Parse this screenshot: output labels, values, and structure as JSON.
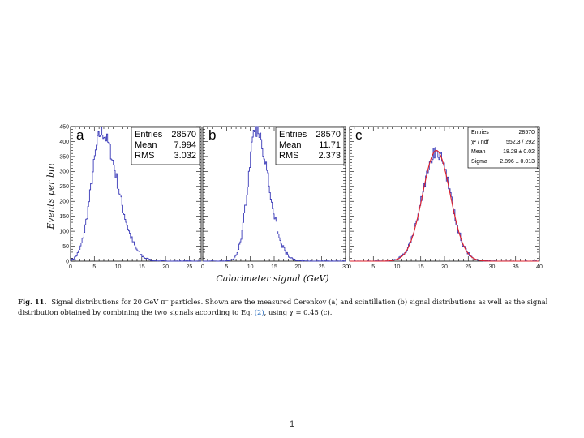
{
  "chart_data": [
    {
      "type": "histogram",
      "panel_label": "a",
      "ylabel": "Events per bin",
      "xlim": [
        0,
        27.5
      ],
      "ylim": [
        0,
        450
      ],
      "yticks": [
        0,
        50,
        100,
        150,
        200,
        250,
        300,
        350,
        400,
        450
      ],
      "xticks": [
        0,
        5,
        10,
        15,
        20,
        25
      ],
      "line_color": "#3a3ab8",
      "stats": [
        {
          "label": "Entries",
          "value": "28570"
        },
        {
          "label": "Mean",
          "value": "7.994"
        },
        {
          "label": "RMS",
          "value": "3.032"
        }
      ],
      "peak_x": 6.5,
      "peak_y": 430,
      "sigma_left": 2.1,
      "sigma_right": 3.4
    },
    {
      "type": "histogram",
      "panel_label": "b",
      "xlim": [
        0,
        30
      ],
      "ylim": [
        0,
        450
      ],
      "xticks": [
        0,
        5,
        10,
        15,
        20,
        25,
        30
      ],
      "line_color": "#3a3ab8",
      "stats": [
        {
          "label": "Entries",
          "value": "28570"
        },
        {
          "label": "Mean",
          "value": "11.71"
        },
        {
          "label": "RMS",
          "value": "2.373"
        }
      ],
      "peak_x": 11.2,
      "peak_y": 435,
      "sigma_left": 1.7,
      "sigma_right": 2.7
    },
    {
      "type": "histogram",
      "panel_label": "c",
      "xlim": [
        0,
        40
      ],
      "ylim": [
        0,
        450
      ],
      "xticks": [
        0,
        5,
        10,
        15,
        20,
        25,
        30,
        35,
        40
      ],
      "line_color": "#3a3ab8",
      "fit_color": "#e0202a",
      "stats": [
        {
          "label": "Entries",
          "value": "28570"
        },
        {
          "label": "χ² / ndf",
          "value": "552.3 / 292"
        },
        {
          "label": "Mean",
          "value": "18.28 ± 0.02"
        },
        {
          "label": "Sigma",
          "value": "2.896 ± 0.013"
        }
      ],
      "peak_x": 18.3,
      "peak_y": 370,
      "sigma_left": 2.9,
      "sigma_right": 2.9
    }
  ],
  "xlabel": "Calorimeter signal (GeV)",
  "caption": {
    "label": "Fig. 11.",
    "text_before_ref": "Signal distributions for 20 GeV π⁻ particles. Shown are the measured Čerenkov (a) and scintillation (b) signal distributions as well as the signal distribution obtained by combining the two signals according to Eq. ",
    "ref": "(2)",
    "text_after_ref": ", using χ = 0.45 (c)."
  },
  "page_number": "1"
}
